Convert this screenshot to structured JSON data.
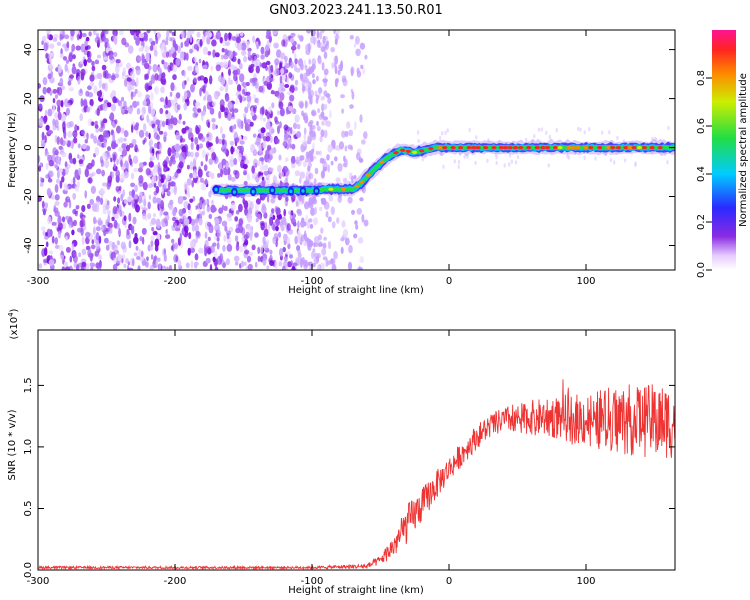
{
  "figure_title": "GN03.2023.241.13.50.R01",
  "chart_data": [
    {
      "type": "heatmap",
      "title": "GN03.2023.241.13.50.R01",
      "xlabel": "Height of straight line (km)",
      "ylabel": "Frequency (Hz)",
      "xlim": [
        -300,
        165
      ],
      "ylim": [
        -50,
        48
      ],
      "xticks": [
        -300,
        -200,
        -100,
        0,
        100
      ],
      "xtick_labels": [
        "-300",
        "-200",
        "-100",
        "0",
        "100"
      ],
      "yticks": [
        -40,
        -20,
        0,
        20,
        40
      ],
      "ytick_labels": [
        "-40",
        "-20",
        "0",
        "20",
        "40"
      ],
      "colorbar": {
        "label": "Normalized spectral amplitude",
        "range": [
          0,
          1
        ],
        "ticks": [
          0.0,
          0.2,
          0.4,
          0.6,
          0.8
        ],
        "tick_labels": [
          "0.0",
          "0.2",
          "0.4",
          "0.6",
          "0.8"
        ],
        "colormap": "rainbow (white-violet-blue-cyan-green-yellow-red-magenta)"
      },
      "ridge": {
        "x": [
          -170,
          -150,
          -120,
          -100,
          -90,
          -70,
          -65,
          -55,
          -45,
          -35,
          -25,
          -10,
          0,
          50,
          100,
          165
        ],
        "y": [
          -17.5,
          -17.5,
          -17.5,
          -17.5,
          -17,
          -17,
          -15,
          -9,
          -4,
          -1,
          -2,
          0,
          0,
          0,
          0,
          0
        ]
      },
      "noise_region": {
        "x_range": [
          -300,
          -70
        ],
        "intensity": "low"
      }
    },
    {
      "type": "line",
      "xlabel": "Height of straight line (km)",
      "ylabel": "SNR (10 * v/v)",
      "yscale_label": "(x10",
      "yscale_exponent": "4",
      "yscale_suffix": ")",
      "xlim": [
        -300,
        165
      ],
      "ylim": [
        0,
        1.95
      ],
      "xticks": [
        -300,
        -200,
        -100,
        0,
        100
      ],
      "xtick_labels": [
        "-300",
        "-200",
        "-100",
        "0",
        "100"
      ],
      "yticks": [
        0.0,
        0.5,
        1.0,
        1.5
      ],
      "ytick_labels": [
        "0.0",
        "0.5",
        "1.0",
        "1.5"
      ],
      "series": [
        {
          "color": "#ee3333",
          "envelope_x": [
            -300,
            -100,
            -60,
            -50,
            -40,
            -30,
            -20,
            -10,
            0,
            10,
            20,
            30,
            40,
            60,
            80,
            100,
            120,
            140,
            165
          ],
          "envelope_y": [
            0.02,
            0.02,
            0.03,
            0.08,
            0.2,
            0.38,
            0.52,
            0.68,
            0.82,
            0.95,
            1.08,
            1.17,
            1.22,
            1.24,
            1.24,
            1.22,
            1.22,
            1.22,
            1.2
          ],
          "noise_amplitude": [
            0.01,
            0.01,
            0.02,
            0.04,
            0.1,
            0.16,
            0.14,
            0.12,
            0.1,
            0.1,
            0.1,
            0.1,
            0.1,
            0.14,
            0.18,
            0.22,
            0.28,
            0.3,
            0.3
          ]
        }
      ]
    }
  ]
}
